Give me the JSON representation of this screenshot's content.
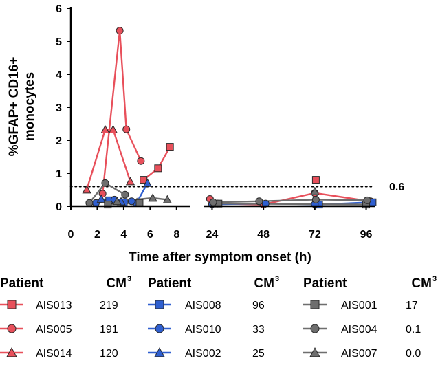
{
  "chart_data": {
    "type": "line",
    "ylabel": "%GFAP+ CD16+ monocytes",
    "xlabel": "Time after symptom onset (h)",
    "ylim": [
      0,
      6
    ],
    "yticks": [
      "0",
      "1",
      "2",
      "3",
      "4",
      "5",
      "6"
    ],
    "x_segments": [
      {
        "range": [
          0,
          9
        ],
        "ticks": [
          "0",
          "2",
          "4",
          "6",
          "8"
        ]
      },
      {
        "range": [
          20,
          100
        ],
        "ticks": [
          "24",
          "48",
          "72",
          "96"
        ]
      }
    ],
    "reference_line": {
      "y": 0.6,
      "label": "0.6",
      "style": "dotted"
    },
    "legend": {
      "patient_header": "Patient",
      "cm_header": "CM",
      "cm_sup": "3"
    },
    "colors": {
      "red": "#e8505b",
      "blue": "#2f5fd0",
      "grey": "#6e6e6e"
    },
    "series": [
      {
        "name": "AIS013",
        "cm": "219",
        "marker": "square",
        "color": "#e8505b",
        "x": [
          5.5,
          6.6,
          7.5,
          72.5
        ],
        "y": [
          0.8,
          1.15,
          1.8,
          0.8
        ]
      },
      {
        "name": "AIS005",
        "cm": "191",
        "marker": "circle",
        "color": "#e8505b",
        "x": [
          2.4,
          3.7,
          4.2,
          5.3,
          23,
          26.5,
          48,
          72,
          98
        ],
        "y": [
          0.38,
          5.32,
          2.33,
          1.37,
          0.22,
          0.08,
          0.05,
          0.4,
          0.15
        ]
      },
      {
        "name": "AIS014",
        "cm": "120",
        "marker": "triangle",
        "color": "#e8505b",
        "x": [
          1.2,
          2.6,
          3.2,
          4.5
        ],
        "y": [
          0.5,
          2.32,
          2.32,
          0.75
        ]
      },
      {
        "name": "AIS008",
        "cm": "96",
        "marker": "square",
        "color": "#2f5fd0",
        "x": [
          2.9,
          4.0,
          74,
          99
        ],
        "y": [
          0.18,
          0.12,
          0.05,
          0.12
        ]
      },
      {
        "name": "AIS010",
        "cm": "33",
        "marker": "circle",
        "color": "#2f5fd0",
        "x": [
          1.9,
          3.3,
          4.6,
          24,
          49,
          72
        ],
        "y": [
          0.1,
          0.2,
          0.15,
          0.06,
          0.08,
          0.06
        ]
      },
      {
        "name": "AIS002",
        "cm": "25",
        "marker": "triangle",
        "color": "#2f5fd0",
        "x": [
          2.3,
          3.8,
          5.0,
          5.8
        ],
        "y": [
          0.22,
          0.14,
          0.12,
          0.7
        ]
      },
      {
        "name": "AIS001",
        "cm": "17",
        "marker": "square",
        "color": "#6e6e6e",
        "x": [
          2.8,
          5.2,
          27,
          96
        ],
        "y": [
          0.05,
          0.1,
          0.08,
          0.05
        ]
      },
      {
        "name": "AIS004",
        "cm": "0.1",
        "marker": "circle",
        "color": "#6e6e6e",
        "x": [
          1.4,
          2.6,
          4.1,
          24.5,
          46,
          72.5,
          96.5
        ],
        "y": [
          0.1,
          0.7,
          0.35,
          0.12,
          0.15,
          0.2,
          0.18
        ]
      },
      {
        "name": "AIS007",
        "cm": "0.0",
        "marker": "triangle",
        "color": "#6e6e6e",
        "x": [
          3.5,
          6.2,
          7.3,
          72
        ],
        "y": [
          0.15,
          0.25,
          0.2,
          0.45
        ]
      }
    ]
  }
}
